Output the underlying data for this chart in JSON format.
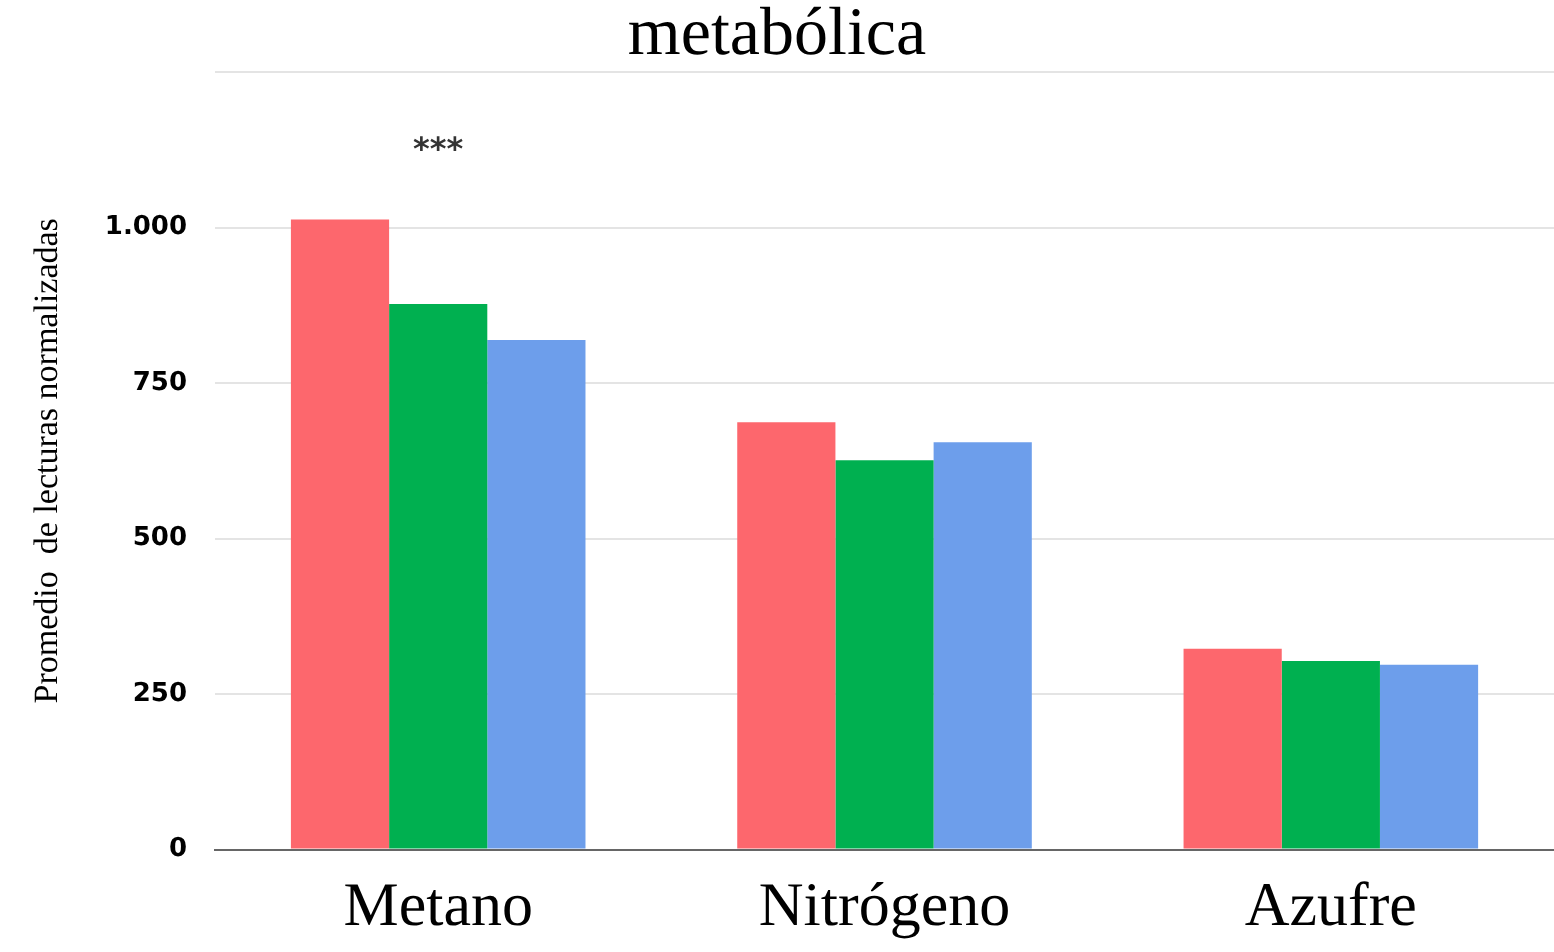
{
  "chart_data": {
    "type": "bar",
    "title": "metabólica",
    "ylabel": "Promedio  de lecturas normalizadas",
    "categories": [
      "Metano",
      "Nitrógeno",
      "Azufre"
    ],
    "series": [
      {
        "color": "#fd676d",
        "values": [
          1013,
          687,
          323
        ]
      },
      {
        "color": "#00b050",
        "values": [
          877,
          626,
          303
        ]
      },
      {
        "color": "#6d9eeb",
        "values": [
          819,
          655,
          297
        ]
      }
    ],
    "ylim": [
      0,
      1250
    ],
    "yticks": [
      0,
      250,
      500,
      750,
      {
        "value": 1000,
        "label": "1.000"
      },
      {
        "value": 1250,
        "label": null
      }
    ],
    "grid": "y",
    "legend": false,
    "annotations": [
      "***"
    ]
  }
}
